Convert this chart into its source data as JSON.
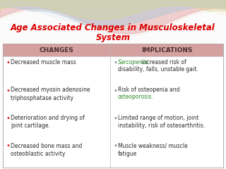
{
  "title_line1": "Age Associated Changes in Musculoskeletal",
  "title_line2": "System",
  "title_color": "#dd0000",
  "title_fontsize": 8.5,
  "header_bg": "#d4a0a0",
  "header_text_color": "#4a3030",
  "header_left": "CHANGES",
  "header_right": "IMPLICATIONS",
  "header_fontsize": 6.5,
  "bg_color": "#f8f4f2",
  "text_color": "#2a2a2a",
  "bullet_color_left": "#cc2222",
  "bullet_color_right": "#888888",
  "green_color": "#2a8a2a",
  "changes": [
    "Decreased muscle mass",
    "Decreased myosin adenosine\ntriphosphatase activity",
    "Deterioration and drying of\njoint cartilage.",
    "Decreased bone mass and\nosteoblastic activity"
  ],
  "impl_line1": [
    "Sarcopenia:",
    " increased risk of\ndisability, falls, unstable gait."
  ],
  "impl_line2a": "Risk of osteopenia and\n",
  "impl_line2b": "osteoporosis.",
  "impl_line3": "Limited range of motion, joint\ninstability, risk of osteoarthritis.",
  "impl_line4": "Muscle weakness/ muscle\nfatigue",
  "body_fontsize": 5.5,
  "wave1_color": "#e8b0b0",
  "wave2_color": "#b0c8d8",
  "wave3_color": "#d4d890"
}
